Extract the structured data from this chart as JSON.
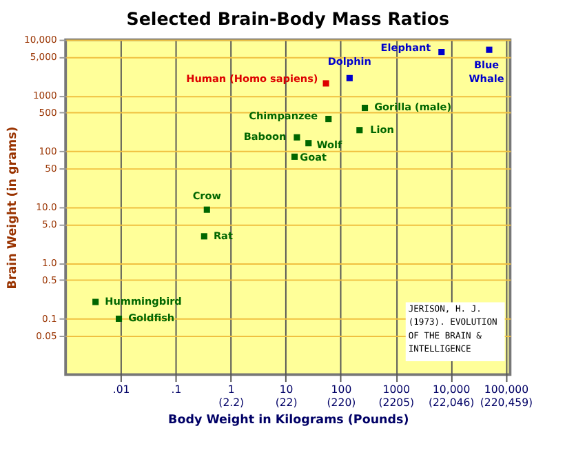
{
  "chart_data": {
    "type": "scatter",
    "title": "Selected Brain-Body Mass Ratios",
    "xlabel": "Body Weight in Kilograms (Pounds)",
    "ylabel": "Brain Weight (in grams)",
    "log": "xy",
    "grid": true,
    "legend": false,
    "marker": "square",
    "xlim": [
      0.001,
      120000
    ],
    "ylim": [
      0.01,
      10000
    ],
    "xticks": [
      {
        "value": 0.01,
        "label": ".01"
      },
      {
        "value": 0.1,
        "label": ".1"
      },
      {
        "value": 1,
        "label": "1\n(2.2)"
      },
      {
        "value": 10,
        "label": "10\n(22)"
      },
      {
        "value": 100,
        "label": "100\n(220)"
      },
      {
        "value": 1000,
        "label": "1000\n(2205)"
      },
      {
        "value": 10000,
        "label": "10,000\n(22,046)"
      },
      {
        "value": 100000,
        "label": "100,000\n(220,459)"
      }
    ],
    "yticks": [
      {
        "value": 10000,
        "label": "10,000"
      },
      {
        "value": 5000,
        "label": "5,000"
      },
      1000,
      500,
      100,
      50,
      {
        "value": 10,
        "label": "10.0"
      },
      {
        "value": 5,
        "label": "5.0"
      },
      {
        "value": 1,
        "label": "1.0"
      },
      0.5,
      0.1,
      0.05
    ],
    "series": [
      {
        "color": "#dd0000",
        "x": [
          54
        ],
        "values": [
          1650
        ]
      },
      {
        "color": "#0000cc",
        "x": [
          145,
          6800,
          50000
        ],
        "values": [
          2050,
          6000,
          6600
        ]
      },
      {
        "color": "#006600",
        "x": [
          275,
          60,
          16,
          26,
          14.5,
          220,
          0.37,
          0.33,
          0.0035,
          0.0093
        ],
        "values": [
          600,
          380,
          178,
          140,
          80,
          240,
          9,
          3,
          0.2,
          0.1
        ]
      }
    ],
    "annotations": [
      {
        "text": "Human (Homo sapiens)",
        "x": 54,
        "y": 1650
      },
      {
        "text": "Dolphin",
        "x": 145,
        "y": 2050
      },
      {
        "text": "Elephant",
        "x": 6800,
        "y": 6000
      },
      {
        "text": "Blue Whale",
        "x": 50000,
        "y": 6600
      },
      {
        "text": "Gorilla (male)",
        "x": 275,
        "y": 600
      },
      {
        "text": "Chimpanzee",
        "x": 60,
        "y": 380
      },
      {
        "text": "Baboon",
        "x": 16,
        "y": 178
      },
      {
        "text": "Wolf",
        "x": 26,
        "y": 140
      },
      {
        "text": "Goat",
        "x": 14.5,
        "y": 80
      },
      {
        "text": "Lion",
        "x": 220,
        "y": 240
      },
      {
        "text": "Crow",
        "x": 0.37,
        "y": 9
      },
      {
        "text": "Rat",
        "x": 0.33,
        "y": 3
      },
      {
        "text": "Hummingbird",
        "x": 0.0035,
        "y": 0.2
      },
      {
        "text": "Goldfish",
        "x": 0.0093,
        "y": 0.1
      },
      "JERISON, H. J. (1973). EVOLUTION OF THE BRAIN & INTELLIGENCE"
    ]
  }
}
